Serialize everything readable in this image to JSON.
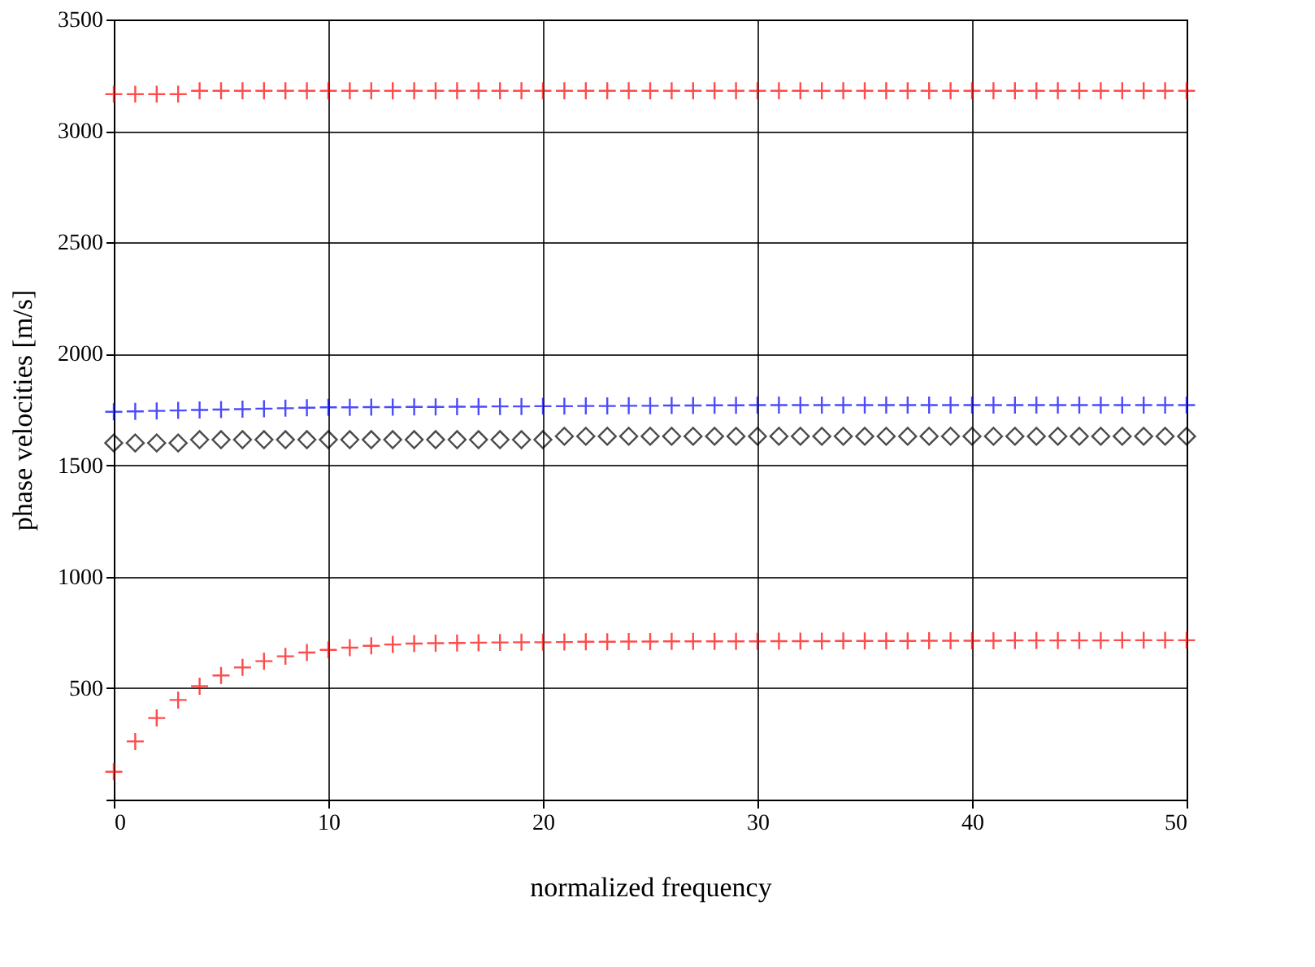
{
  "chart_data": {
    "type": "scatter",
    "xlabel": "normalized frequency",
    "ylabel": "phase velocities [m/s]",
    "x": [
      0,
      1,
      2,
      3,
      4,
      5,
      6,
      7,
      8,
      9,
      10,
      11,
      12,
      13,
      14,
      15,
      16,
      17,
      18,
      19,
      20,
      21,
      22,
      23,
      24,
      25,
      26,
      27,
      28,
      29,
      30,
      31,
      32,
      33,
      34,
      35,
      36,
      37,
      38,
      39,
      40,
      41,
      42,
      43,
      44,
      45,
      46,
      47,
      48,
      49,
      50
    ],
    "xlim": [
      0,
      50
    ],
    "xticks": [
      0,
      10,
      20,
      30,
      40,
      50
    ],
    "ylim": [
      0,
      3500
    ],
    "yticks": [
      {
        "value": 0,
        "label": null
      },
      500,
      1000,
      1500,
      2000,
      2500,
      3000,
      3500
    ],
    "grid": true,
    "series": [
      {
        "color": "#ff0000",
        "marker": "cross",
        "values": [
          3165,
          3165,
          3165,
          3165,
          3180,
          3180,
          3180,
          3180,
          3180,
          3180,
          3180,
          3180,
          3180,
          3180,
          3180,
          3180,
          3180,
          3180,
          3180,
          3180,
          3180,
          3180,
          3180,
          3180,
          3180,
          3180,
          3180,
          3180,
          3180,
          3180,
          3180,
          3180,
          3180,
          3180,
          3180,
          3180,
          3180,
          3180,
          3180,
          3180,
          3180,
          3180,
          3180,
          3180,
          3180,
          3180,
          3180,
          3180,
          3180,
          3180,
          3180
        ]
      },
      {
        "color": "#0000ff",
        "marker": "cross",
        "values": [
          1740,
          1742,
          1744,
          1746,
          1748,
          1750,
          1752,
          1754,
          1756,
          1758,
          1760,
          1760,
          1761,
          1761,
          1762,
          1762,
          1763,
          1763,
          1764,
          1764,
          1765,
          1765,
          1766,
          1766,
          1767,
          1767,
          1768,
          1768,
          1769,
          1769,
          1770,
          1770,
          1770,
          1770,
          1770,
          1770,
          1770,
          1770,
          1770,
          1770,
          1770,
          1770,
          1770,
          1770,
          1770,
          1770,
          1770,
          1770,
          1770,
          1770,
          1770
        ]
      },
      {
        "color": "#000000",
        "marker": "diamond",
        "values": [
          1600,
          1600,
          1600,
          1600,
          1615,
          1615,
          1615,
          1615,
          1615,
          1615,
          1615,
          1615,
          1615,
          1615,
          1615,
          1615,
          1615,
          1615,
          1615,
          1615,
          1615,
          1630,
          1630,
          1630,
          1630,
          1630,
          1630,
          1630,
          1630,
          1630,
          1630,
          1630,
          1630,
          1630,
          1630,
          1630,
          1630,
          1630,
          1630,
          1630,
          1630,
          1630,
          1630,
          1630,
          1630,
          1630,
          1630,
          1630,
          1630,
          1630,
          1630
        ]
      },
      {
        "color": "#ff0000",
        "marker": "cross",
        "values": [
          125,
          261,
          366,
          447,
          509,
          557,
          593,
          621,
          643,
          660,
          672,
          682,
          690,
          696,
          700,
          702,
          703,
          704,
          705,
          706,
          706,
          707,
          708,
          708,
          709,
          709,
          710,
          710,
          710,
          710,
          710,
          711,
          711,
          711,
          712,
          712,
          712,
          712,
          713,
          713,
          713,
          713,
          714,
          714,
          714,
          714,
          714,
          715,
          715,
          715,
          715
        ]
      }
    ]
  }
}
